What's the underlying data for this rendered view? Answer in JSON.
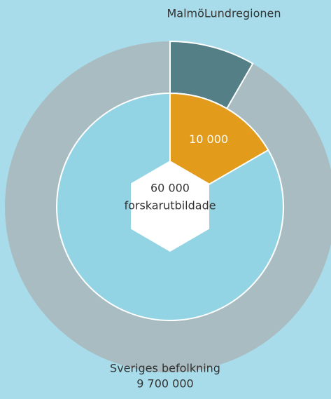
{
  "chart_data": {
    "type": "nested-pie",
    "outer": {
      "name": "Sveriges befolkning",
      "total": 9700000,
      "total_label": "9 700 000",
      "color": "#a9bcc1",
      "segment": {
        "name": "MalmöLundregionen",
        "value": 810000,
        "color": "#557f86"
      }
    },
    "inner": {
      "name": "forskarutbildade",
      "total": 60000,
      "total_label": "60 000",
      "color": "#93d4e4",
      "segment": {
        "value": 10000,
        "value_label": "10 000",
        "color": "#e39b1c"
      }
    }
  }
}
